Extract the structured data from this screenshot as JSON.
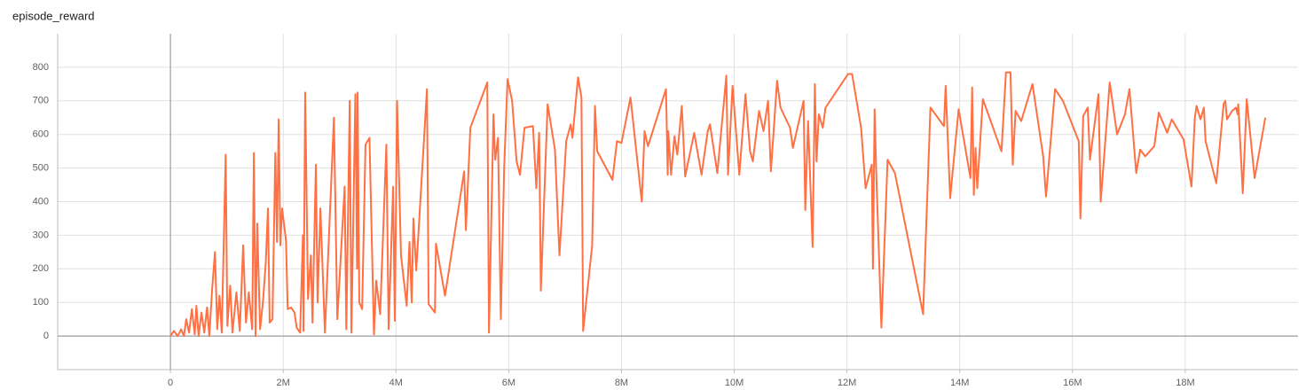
{
  "chart_data": {
    "type": "line",
    "title": "episode_reward",
    "xlim": [
      -2000000,
      20000000
    ],
    "ylim": [
      -100,
      900
    ],
    "xticks": [
      0,
      {
        "value": 2000000,
        "label": "2M"
      },
      {
        "value": 4000000,
        "label": "4M"
      },
      {
        "value": 6000000,
        "label": "6M"
      },
      {
        "value": 8000000,
        "label": "8M"
      },
      {
        "value": 10000000,
        "label": "10M"
      },
      {
        "value": 12000000,
        "label": "12M"
      },
      {
        "value": 14000000,
        "label": "14M"
      },
      {
        "value": 16000000,
        "label": "16M"
      },
      {
        "value": 18000000,
        "label": "18M"
      }
    ],
    "yticks": [
      0,
      100,
      200,
      300,
      400,
      500,
      600,
      700,
      800
    ],
    "grid": true,
    "series": [
      {
        "color": "#ff7043",
        "x": [
          0,
          60000,
          130000,
          190000,
          240000,
          280000,
          330000,
          380000,
          430000,
          460000,
          500000,
          550000,
          600000,
          650000,
          690000,
          740000,
          790000,
          830000,
          870000,
          910000,
          980000,
          1010000,
          1060000,
          1100000,
          1170000,
          1230000,
          1290000,
          1340000,
          1390000,
          1450000,
          1480000,
          1510000,
          1540000,
          1590000,
          1640000,
          1690000,
          1730000,
          1760000,
          1810000,
          1860000,
          1890000,
          1920000,
          1950000,
          1980000,
          2050000,
          2080000,
          2140000,
          2200000,
          2240000,
          2300000,
          2350000,
          2360000,
          2390000,
          2440000,
          2490000,
          2520000,
          2580000,
          2610000,
          2660000,
          2740000,
          2900000,
          2960000,
          3090000,
          3120000,
          3180000,
          3210000,
          3280000,
          3310000,
          3320000,
          3350000,
          3400000,
          3460000,
          3530000,
          3610000,
          3650000,
          3720000,
          3830000,
          3870000,
          3950000,
          3980000,
          4020000,
          4090000,
          4190000,
          4240000,
          4280000,
          4310000,
          4360000,
          4550000,
          4580000,
          4690000,
          4710000,
          4870000,
          5210000,
          5240000,
          5320000,
          5620000,
          5650000,
          5730000,
          5760000,
          5810000,
          5860000,
          5920000,
          5980000,
          6060000,
          6140000,
          6200000,
          6280000,
          6430000,
          6490000,
          6540000,
          6570000,
          6690000,
          6820000,
          6900000,
          7020000,
          7100000,
          7130000,
          7230000,
          7290000,
          7320000,
          7480000,
          7530000,
          7570000,
          7840000,
          7920000,
          8000000,
          8160000,
          8360000,
          8410000,
          8470000,
          8790000,
          8820000,
          8830000,
          8880000,
          8940000,
          8990000,
          9070000,
          9130000,
          9290000,
          9420000,
          9530000,
          9570000,
          9700000,
          9860000,
          9890000,
          9970000,
          10090000,
          10200000,
          10280000,
          10330000,
          10440000,
          10520000,
          10600000,
          10650000,
          10760000,
          10820000,
          10990000,
          11040000,
          11230000,
          11260000,
          11310000,
          11390000,
          11430000,
          11460000,
          11500000,
          11570000,
          11620000,
          12020000,
          12090000,
          12250000,
          12330000,
          12440000,
          12460000,
          12490000,
          12520000,
          12610000,
          12720000,
          12850000,
          13350000,
          13480000,
          13720000,
          13750000,
          13830000,
          13980000,
          14190000,
          14220000,
          14250000,
          14280000,
          14310000,
          14410000,
          14740000,
          14820000,
          14900000,
          14940000,
          14990000,
          15090000,
          15290000,
          15480000,
          15530000,
          15690000,
          15830000,
          16110000,
          16140000,
          16190000,
          16270000,
          16310000,
          16460000,
          16500000,
          16660000,
          16790000,
          16930000,
          17010000,
          17130000,
          17200000,
          17290000,
          17450000,
          17530000,
          17680000,
          17760000,
          17970000,
          18110000,
          18170000,
          18200000,
          18270000,
          18330000,
          18360000,
          18550000,
          18680000,
          18710000,
          18740000,
          18830000,
          18900000,
          18930000,
          18940000,
          19020000,
          19090000,
          19230000,
          19420000
        ],
        "values": [
          0,
          15,
          0,
          20,
          0,
          50,
          10,
          80,
          5,
          90,
          0,
          70,
          10,
          85,
          0,
          140,
          250,
          20,
          120,
          10,
          540,
          30,
          150,
          10,
          130,
          15,
          270,
          40,
          130,
          20,
          545,
          0,
          335,
          20,
          100,
          215,
          380,
          40,
          50,
          545,
          280,
          645,
          270,
          380,
          285,
          80,
          85,
          70,
          25,
          10,
          300,
          15,
          725,
          110,
          240,
          40,
          510,
          100,
          380,
          10,
          650,
          50,
          445,
          20,
          700,
          10,
          720,
          200,
          725,
          100,
          80,
          570,
          590,
          5,
          165,
          65,
          570,
          20,
          445,
          45,
          700,
          240,
          90,
          280,
          100,
          350,
          195,
          735,
          95,
          70,
          275,
          120,
          490,
          315,
          620,
          755,
          10,
          660,
          525,
          590,
          50,
          505,
          765,
          700,
          520,
          480,
          620,
          625,
          440,
          605,
          135,
          690,
          555,
          240,
          580,
          630,
          590,
          770,
          710,
          15,
          270,
          685,
          550,
          465,
          580,
          575,
          710,
          400,
          610,
          565,
          735,
          480,
          610,
          480,
          595,
          540,
          685,
          475,
          605,
          480,
          610,
          630,
          485,
          775,
          480,
          745,
          480,
          720,
          550,
          520,
          670,
          610,
          700,
          490,
          760,
          680,
          620,
          560,
          700,
          375,
          640,
          265,
          750,
          520,
          660,
          620,
          680,
          780,
          780,
          620,
          440,
          510,
          200,
          675,
          480,
          25,
          525,
          485,
          65,
          680,
          625,
          745,
          410,
          675,
          470,
          740,
          420,
          560,
          440,
          705,
          550,
          785,
          785,
          510,
          670,
          640,
          750,
          535,
          415,
          735,
          700,
          580,
          350,
          655,
          680,
          525,
          720,
          400,
          755,
          600,
          660,
          735,
          485,
          555,
          535,
          565,
          665,
          605,
          645,
          585,
          445,
          650,
          685,
          645,
          680,
          580,
          455,
          690,
          700,
          645,
          670,
          680,
          660,
          690,
          425,
          705,
          470,
          650
        ]
      }
    ]
  }
}
